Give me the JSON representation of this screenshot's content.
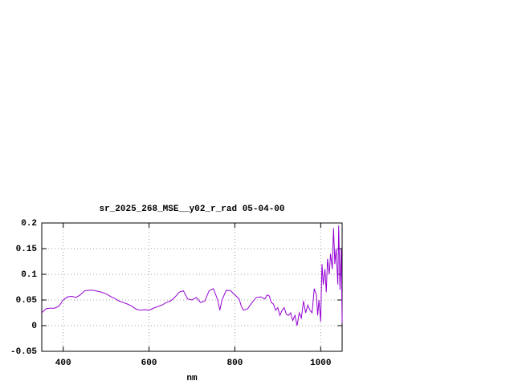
{
  "chart_data": {
    "type": "line",
    "title": "sr_2025_268_MSE__y02_r_rad 05-04-00",
    "x_label": "nm",
    "xlim": [
      350,
      1050
    ],
    "xticks": [
      400,
      600,
      800,
      1000
    ],
    "ylim": [
      -0.05,
      0.2
    ],
    "yticks": [
      -0.05,
      0,
      0.05,
      0.1,
      0.15,
      0.2
    ],
    "grid": true,
    "x": [
      350,
      360,
      370,
      380,
      390,
      400,
      410,
      420,
      430,
      440,
      450,
      460,
      470,
      480,
      490,
      500,
      510,
      520,
      530,
      540,
      550,
      560,
      570,
      580,
      590,
      600,
      610,
      620,
      630,
      640,
      650,
      660,
      670,
      680,
      690,
      700,
      710,
      720,
      730,
      740,
      750,
      760,
      765,
      770,
      780,
      790,
      800,
      810,
      815,
      820,
      830,
      840,
      850,
      860,
      870,
      875,
      880,
      885,
      890,
      895,
      900,
      905,
      910,
      915,
      920,
      925,
      930,
      935,
      940,
      945,
      950,
      955,
      960,
      965,
      970,
      975,
      980,
      985,
      990,
      993,
      996,
      1000,
      1003,
      1006,
      1010,
      1013,
      1016,
      1020,
      1023,
      1027,
      1030,
      1033,
      1036,
      1040,
      1042,
      1045,
      1048,
      1050
    ],
    "series": [
      {
        "color": "#9400d3",
        "values": [
          0.025,
          0.033,
          0.034,
          0.034,
          0.038,
          0.05,
          0.056,
          0.057,
          0.055,
          0.06,
          0.068,
          0.069,
          0.069,
          0.067,
          0.065,
          0.062,
          0.057,
          0.053,
          0.048,
          0.045,
          0.042,
          0.038,
          0.032,
          0.03,
          0.031,
          0.03,
          0.034,
          0.037,
          0.04,
          0.045,
          0.048,
          0.055,
          0.065,
          0.068,
          0.052,
          0.05,
          0.055,
          0.045,
          0.048,
          0.068,
          0.072,
          0.05,
          0.03,
          0.05,
          0.069,
          0.068,
          0.06,
          0.052,
          0.038,
          0.03,
          0.033,
          0.045,
          0.055,
          0.056,
          0.052,
          0.06,
          0.058,
          0.045,
          0.042,
          0.03,
          0.035,
          0.02,
          0.03,
          0.035,
          0.022,
          0.02,
          0.025,
          0.01,
          0.02,
          0.0,
          0.025,
          0.015,
          0.048,
          0.025,
          0.04,
          0.03,
          0.025,
          0.072,
          0.06,
          0.02,
          0.05,
          0.008,
          0.12,
          0.08,
          0.11,
          0.065,
          0.13,
          0.1,
          0.14,
          0.11,
          0.19,
          0.12,
          0.15,
          0.08,
          0.195,
          0.07,
          0.15,
          0.005
        ]
      }
    ]
  }
}
